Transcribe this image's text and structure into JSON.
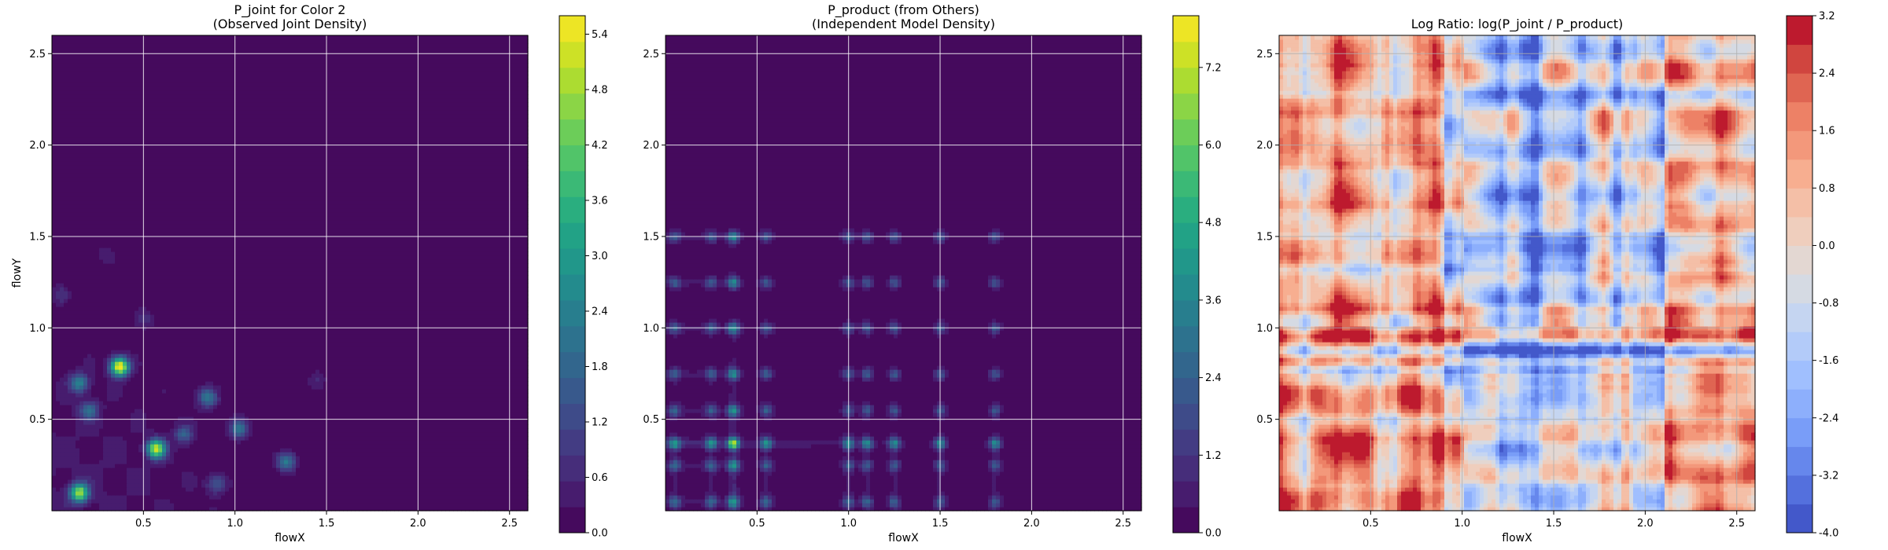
{
  "chart_data": [
    {
      "type": "heatmap",
      "title": "P_joint for Color 2",
      "subtitle": "(Observed Joint Density)",
      "xlabel": "flowX",
      "ylabel": "flowY",
      "xlim": [
        0.0,
        2.6
      ],
      "ylim": [
        0.0,
        2.6
      ],
      "xticks": [
        "0.5",
        "1.0",
        "1.5",
        "2.0",
        "2.5"
      ],
      "yticks": [
        "0.5",
        "1.0",
        "1.5",
        "2.0",
        "2.5"
      ],
      "grid": true,
      "colormap": "viridis",
      "colorbar": {
        "min": 0.0,
        "max": 5.6,
        "ticks": [
          "0.0",
          "0.6",
          "1.2",
          "1.8",
          "2.4",
          "3.0",
          "3.6",
          "4.2",
          "4.8",
          "5.4"
        ]
      },
      "background_value": 0.0,
      "peaks": [
        {
          "x": 0.15,
          "y": 0.1,
          "v": 4.6
        },
        {
          "x": 0.37,
          "y": 0.79,
          "v": 5.6
        },
        {
          "x": 0.57,
          "y": 0.34,
          "v": 4.9
        },
        {
          "x": 0.15,
          "y": 0.7,
          "v": 2.3
        },
        {
          "x": 0.2,
          "y": 0.55,
          "v": 1.8
        },
        {
          "x": 0.85,
          "y": 0.62,
          "v": 2.1
        },
        {
          "x": 1.02,
          "y": 0.45,
          "v": 2.0
        },
        {
          "x": 1.28,
          "y": 0.27,
          "v": 2.2
        },
        {
          "x": 0.72,
          "y": 0.42,
          "v": 1.5
        },
        {
          "x": 0.9,
          "y": 0.15,
          "v": 1.4
        },
        {
          "x": 0.05,
          "y": 1.18,
          "v": 0.8
        },
        {
          "x": 0.5,
          "y": 1.05,
          "v": 0.7
        },
        {
          "x": 0.3,
          "y": 1.4,
          "v": 0.5
        },
        {
          "x": 1.45,
          "y": 0.72,
          "v": 0.6
        }
      ]
    },
    {
      "type": "heatmap",
      "title": "P_product (from Others)",
      "subtitle": "(Independent Model Density)",
      "xlabel": "flowX",
      "ylabel": "",
      "xlim": [
        0.0,
        2.6
      ],
      "ylim": [
        0.0,
        2.6
      ],
      "xticks": [
        "0.5",
        "1.0",
        "1.5",
        "2.0",
        "2.5"
      ],
      "yticks": [
        "0.5",
        "1.0",
        "1.5",
        "2.0",
        "2.5"
      ],
      "grid": true,
      "colormap": "viridis",
      "colorbar": {
        "min": 0.0,
        "max": 8.0,
        "ticks": [
          "0.0",
          "1.2",
          "2.4",
          "3.6",
          "4.8",
          "6.0",
          "7.2"
        ]
      },
      "background_value": 0.0,
      "marginal_x_peaks": [
        0.05,
        0.25,
        0.37,
        0.55,
        1.0,
        1.1,
        1.25,
        1.5,
        1.8
      ],
      "marginal_y_peaks": [
        0.05,
        0.25,
        0.37,
        0.55,
        0.75,
        1.0,
        1.25,
        1.5
      ],
      "max_value": 8.0
    },
    {
      "type": "heatmap",
      "title": "Log Ratio: log(P_joint / P_product)",
      "xlabel": "flowX",
      "ylabel": "",
      "xlim": [
        0.0,
        2.6
      ],
      "ylim": [
        0.0,
        2.6
      ],
      "xticks": [
        "0.5",
        "1.0",
        "1.5",
        "2.0",
        "2.5"
      ],
      "yticks": [
        "0.5",
        "1.0",
        "1.5",
        "2.0",
        "2.5"
      ],
      "grid": true,
      "colormap": "coolwarm",
      "colorbar": {
        "min": -4.0,
        "max": 3.2,
        "ticks": [
          "-4.0",
          "-3.2",
          "-2.4",
          "-1.6",
          "-0.8",
          "0.0",
          "0.8",
          "1.6",
          "2.4",
          "3.2"
        ]
      },
      "background_value": 0.0
    }
  ]
}
